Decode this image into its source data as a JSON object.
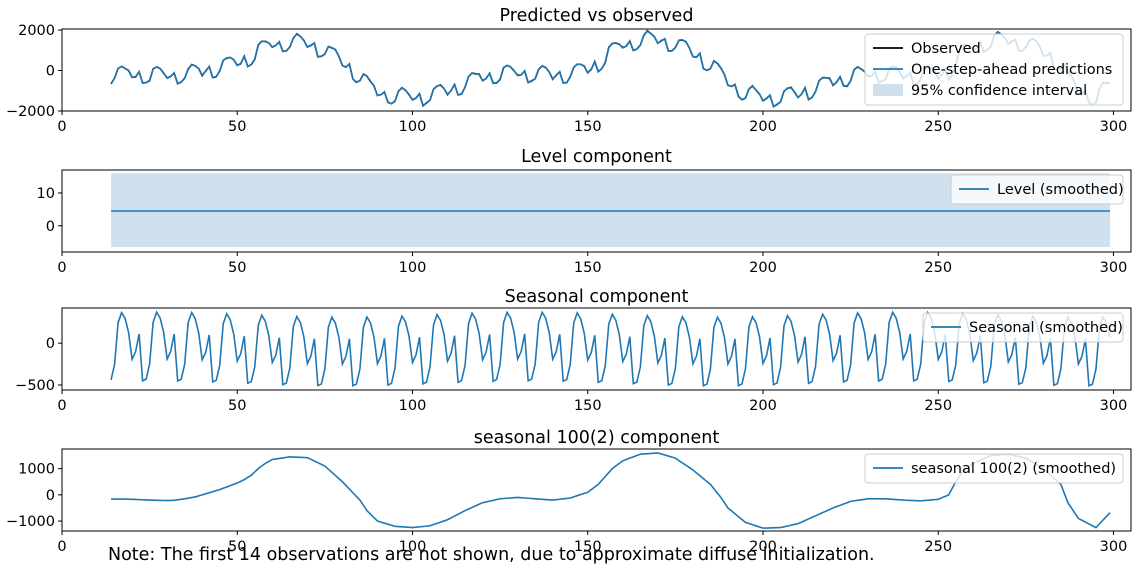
{
  "note": "Note: The first 14 observations are not shown, due to approximate diffuse initialization.",
  "colors": {
    "observed": "#000000",
    "prediction": "#1f77b4",
    "ci_fill": "#cfe0ee",
    "series": "#1f77b4"
  },
  "chart_data": [
    {
      "type": "line",
      "title": "Predicted vs observed",
      "xlim": [
        0,
        305
      ],
      "ylim": [
        -2000,
        2050
      ],
      "xticks": [
        0,
        50,
        100,
        150,
        200,
        250,
        300
      ],
      "yticks": [
        -2000,
        0,
        2000
      ],
      "yticklabels": [
        "−2000",
        "0",
        "2000"
      ],
      "legend": {
        "loc": "upper right",
        "entries": [
          "Observed",
          "One-step-ahead predictions",
          "95% confidence interval"
        ]
      },
      "x_range": [
        14,
        299
      ],
      "description_of_series": "observed and one-step-ahead predictions nearly coincide; sum of level, seasonal and seasonal 100(2) components",
      "series": [
        {
          "name": "Observed",
          "kind": "line"
        },
        {
          "name": "One-step-ahead predictions",
          "kind": "line"
        },
        {
          "name": "95% confidence interval",
          "kind": "band"
        }
      ]
    },
    {
      "type": "line",
      "title": "Level component",
      "xlim": [
        0,
        305
      ],
      "ylim": [
        -8,
        17
      ],
      "xticks": [
        0,
        50,
        100,
        150,
        200,
        250,
        300
      ],
      "yticks": [
        0,
        10
      ],
      "yticklabels": [
        "0",
        "10"
      ],
      "legend": {
        "loc": "upper right",
        "entries": [
          "Level (smoothed)"
        ]
      },
      "series": [
        {
          "name": "Level (smoothed)",
          "x": [
            14,
            299
          ],
          "y": [
            4.5,
            4.5
          ]
        }
      ],
      "band": {
        "x": [
          14,
          299
        ],
        "lower": -6.5,
        "upper": 16
      }
    },
    {
      "type": "line",
      "title": "Seasonal component",
      "xlim": [
        0,
        305
      ],
      "ylim": [
        -560,
        420
      ],
      "xticks": [
        0,
        50,
        100,
        150,
        200,
        250,
        300
      ],
      "yticks": [
        -500,
        0
      ],
      "yticklabels": [
        "−500",
        "0"
      ],
      "legend": {
        "loc": "upper right",
        "entries": [
          "Seasonal (smoothed)"
        ]
      },
      "period": 10,
      "pattern": [
        -460,
        -280,
        220,
        340,
        270,
        100,
        -220,
        -130,
        80,
        -480
      ],
      "x_range": [
        14,
        299
      ]
    },
    {
      "type": "line",
      "title": "seasonal 100(2) component",
      "xlim": [
        0,
        305
      ],
      "ylim": [
        -1380,
        1750
      ],
      "xticks": [
        0,
        50,
        100,
        150,
        200,
        250,
        300
      ],
      "yticks": [
        -1000,
        0,
        1000
      ],
      "yticklabels": [
        "−1000",
        "0",
        "1000"
      ],
      "legend": {
        "loc": "upper right",
        "entries": [
          "seasonal 100(2) (smoothed)"
        ]
      },
      "series": [
        {
          "name": "seasonal 100(2) (smoothed)",
          "x": [
            14,
            18,
            20,
            25,
            30,
            32,
            35,
            38,
            40,
            45,
            50,
            52,
            54,
            56,
            58,
            60,
            65,
            70,
            75,
            80,
            85,
            87,
            90,
            95,
            100,
            105,
            110,
            115,
            120,
            125,
            130,
            135,
            140,
            145,
            150,
            153,
            155,
            157,
            160,
            165,
            170,
            175,
            180,
            185,
            188,
            190,
            195,
            200,
            205,
            210,
            215,
            220,
            225,
            230,
            235,
            240,
            245,
            250,
            253,
            255,
            257,
            260,
            265,
            270,
            275,
            280,
            285,
            287,
            290,
            295,
            299
          ],
          "y": [
            -160,
            -160,
            -170,
            -200,
            -220,
            -210,
            -150,
            -80,
            0,
            200,
            450,
            580,
            750,
            1000,
            1200,
            1350,
            1450,
            1420,
            1100,
            500,
            -200,
            -600,
            -1000,
            -1200,
            -1250,
            -1180,
            -950,
            -600,
            -300,
            -150,
            -100,
            -150,
            -200,
            -120,
            100,
            400,
            700,
            1000,
            1300,
            1550,
            1600,
            1400,
            950,
            400,
            -100,
            -500,
            -1050,
            -1270,
            -1250,
            -1100,
            -800,
            -500,
            -250,
            -150,
            -150,
            -200,
            -230,
            -170,
            0,
            500,
            900,
            1200,
            1500,
            1550,
            1400,
            1000,
            400,
            -300,
            -900,
            -1250,
            -680
          ]
        }
      ]
    }
  ]
}
